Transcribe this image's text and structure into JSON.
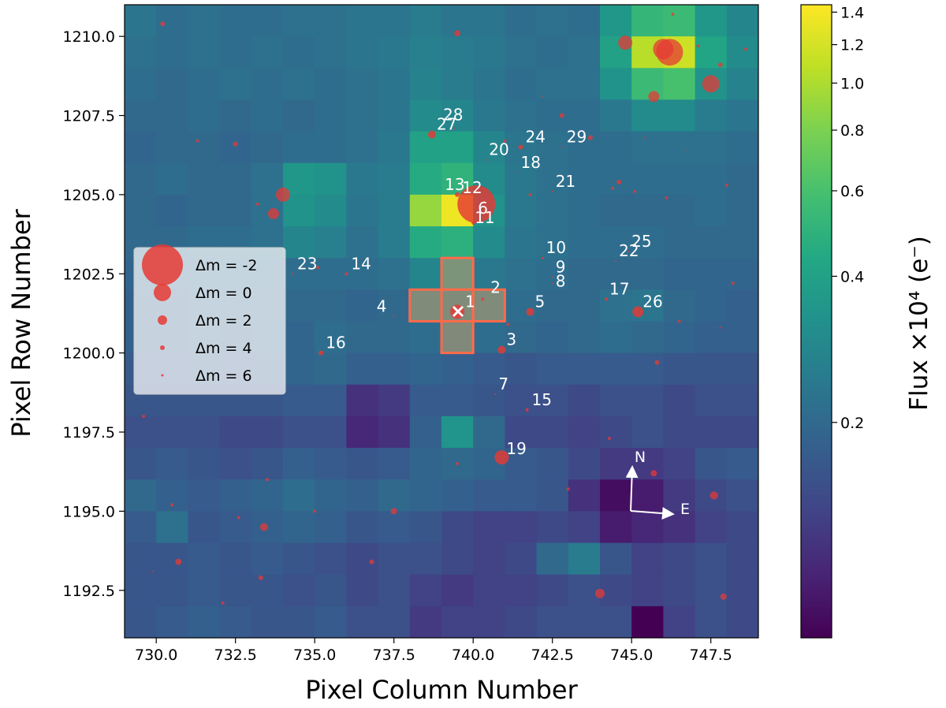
{
  "chart_data": {
    "type": "heatmap",
    "xlabel": "Pixel Column Number",
    "ylabel": "Pixel Row Number",
    "xlim": [
      729.0,
      749.0
    ],
    "ylim": [
      1191.0,
      1211.0
    ],
    "xticks": [
      730.0,
      732.5,
      735.0,
      737.5,
      740.0,
      742.5,
      745.0,
      747.5
    ],
    "xtick_labels": [
      "730.0",
      "732.5",
      "735.0",
      "737.5",
      "740.0",
      "742.5",
      "745.0",
      "747.5"
    ],
    "yticks": [
      1192.5,
      1195.0,
      1197.5,
      1200.0,
      1202.5,
      1205.0,
      1207.5,
      1210.0
    ],
    "ytick_labels": [
      "1192.5",
      "1195.0",
      "1197.5",
      "1200.0",
      "1202.5",
      "1205.0",
      "1207.5",
      "1210.0"
    ],
    "colorbar": {
      "label": "Flux ×10⁴ (e⁻)",
      "scale": "log",
      "range": [
        0.072,
        1.45
      ],
      "ticks": [
        1.4,
        1.2,
        1.0,
        0.8,
        0.6,
        0.4,
        0.2
      ],
      "tick_labels": [
        "1.4",
        "1.2",
        "1.0",
        "0.8",
        "0.6",
        "0.4",
        "0.2"
      ]
    },
    "flux_grid_note": "rows from top (row 1210.5) to bottom (row 1191.5), columns 729.5..748.5",
    "flux_grid": [
      [
        0.23,
        0.21,
        0.22,
        0.21,
        0.21,
        0.22,
        0.22,
        0.23,
        0.23,
        0.25,
        0.23,
        0.23,
        0.21,
        0.22,
        0.21,
        0.35,
        0.52,
        0.55,
        0.35,
        0.28
      ],
      [
        0.22,
        0.21,
        0.22,
        0.21,
        0.22,
        0.21,
        0.22,
        0.23,
        0.24,
        0.26,
        0.25,
        0.24,
        0.22,
        0.21,
        0.22,
        0.4,
        1.05,
        1.15,
        0.42,
        0.3
      ],
      [
        0.21,
        0.2,
        0.21,
        0.22,
        0.21,
        0.22,
        0.21,
        0.22,
        0.23,
        0.27,
        0.25,
        0.23,
        0.21,
        0.22,
        0.22,
        0.33,
        0.55,
        0.6,
        0.33,
        0.27
      ],
      [
        0.2,
        0.2,
        0.21,
        0.2,
        0.21,
        0.2,
        0.21,
        0.22,
        0.23,
        0.3,
        0.28,
        0.24,
        0.22,
        0.21,
        0.21,
        0.24,
        0.3,
        0.3,
        0.25,
        0.23
      ],
      [
        0.19,
        0.2,
        0.2,
        0.19,
        0.2,
        0.21,
        0.21,
        0.22,
        0.24,
        0.4,
        0.4,
        0.28,
        0.23,
        0.22,
        0.21,
        0.21,
        0.22,
        0.22,
        0.22,
        0.21
      ],
      [
        0.2,
        0.21,
        0.2,
        0.2,
        0.22,
        0.35,
        0.33,
        0.24,
        0.25,
        0.45,
        0.5,
        0.3,
        0.24,
        0.22,
        0.21,
        0.21,
        0.21,
        0.21,
        0.21,
        0.2
      ],
      [
        0.2,
        0.19,
        0.2,
        0.2,
        0.22,
        0.33,
        0.3,
        0.23,
        0.25,
        0.9,
        1.35,
        0.33,
        0.24,
        0.22,
        0.21,
        0.2,
        0.2,
        0.2,
        0.21,
        0.2
      ],
      [
        0.2,
        0.2,
        0.21,
        0.21,
        0.22,
        0.28,
        0.26,
        0.22,
        0.25,
        0.45,
        0.48,
        0.3,
        0.23,
        0.22,
        0.21,
        0.21,
        0.21,
        0.2,
        0.2,
        0.2
      ],
      [
        0.19,
        0.19,
        0.2,
        0.2,
        0.2,
        0.21,
        0.21,
        0.21,
        0.22,
        0.28,
        0.28,
        0.24,
        0.22,
        0.21,
        0.2,
        0.2,
        0.2,
        0.19,
        0.19,
        0.19
      ],
      [
        0.18,
        0.18,
        0.19,
        0.19,
        0.19,
        0.2,
        0.2,
        0.19,
        0.2,
        0.22,
        0.22,
        0.22,
        0.21,
        0.2,
        0.2,
        0.22,
        0.23,
        0.2,
        0.19,
        0.18
      ],
      [
        0.18,
        0.18,
        0.19,
        0.18,
        0.19,
        0.19,
        0.21,
        0.2,
        0.2,
        0.21,
        0.21,
        0.21,
        0.2,
        0.19,
        0.2,
        0.21,
        0.2,
        0.19,
        0.18,
        0.18
      ],
      [
        0.17,
        0.17,
        0.18,
        0.17,
        0.18,
        0.19,
        0.2,
        0.18,
        0.18,
        0.19,
        0.18,
        0.17,
        0.16,
        0.17,
        0.17,
        0.17,
        0.17,
        0.16,
        0.16,
        0.16
      ],
      [
        0.16,
        0.16,
        0.16,
        0.16,
        0.16,
        0.17,
        0.17,
        0.11,
        0.12,
        0.17,
        0.17,
        0.16,
        0.15,
        0.15,
        0.14,
        0.15,
        0.15,
        0.14,
        0.15,
        0.15
      ],
      [
        0.15,
        0.15,
        0.15,
        0.14,
        0.14,
        0.15,
        0.15,
        0.1,
        0.11,
        0.18,
        0.34,
        0.2,
        0.14,
        0.14,
        0.13,
        0.14,
        0.15,
        0.14,
        0.14,
        0.14
      ],
      [
        0.16,
        0.17,
        0.16,
        0.15,
        0.16,
        0.18,
        0.17,
        0.16,
        0.17,
        0.19,
        0.2,
        0.19,
        0.17,
        0.16,
        0.14,
        0.12,
        0.12,
        0.13,
        0.16,
        0.17
      ],
      [
        0.2,
        0.18,
        0.17,
        0.18,
        0.19,
        0.21,
        0.19,
        0.18,
        0.2,
        0.19,
        0.18,
        0.17,
        0.17,
        0.16,
        0.11,
        0.08,
        0.09,
        0.12,
        0.14,
        0.15
      ],
      [
        0.17,
        0.22,
        0.16,
        0.17,
        0.18,
        0.19,
        0.18,
        0.16,
        0.17,
        0.16,
        0.14,
        0.13,
        0.13,
        0.14,
        0.13,
        0.09,
        0.1,
        0.11,
        0.13,
        0.14
      ],
      [
        0.16,
        0.16,
        0.17,
        0.16,
        0.17,
        0.16,
        0.15,
        0.14,
        0.15,
        0.15,
        0.14,
        0.13,
        0.14,
        0.2,
        0.25,
        0.16,
        0.13,
        0.14,
        0.15,
        0.14
      ],
      [
        0.16,
        0.16,
        0.17,
        0.16,
        0.16,
        0.15,
        0.16,
        0.14,
        0.15,
        0.13,
        0.12,
        0.13,
        0.13,
        0.14,
        0.15,
        0.14,
        0.13,
        0.14,
        0.15,
        0.14
      ],
      [
        0.16,
        0.17,
        0.18,
        0.17,
        0.16,
        0.16,
        0.17,
        0.15,
        0.15,
        0.12,
        0.13,
        0.13,
        0.14,
        0.15,
        0.15,
        0.15,
        0.07,
        0.13,
        0.15,
        0.14
      ]
    ],
    "aperture_pixels": [
      [
        739.5,
        1202.5
      ],
      [
        739.5,
        1201.5
      ],
      [
        739.5,
        1200.5
      ],
      [
        738.5,
        1201.5
      ],
      [
        740.5,
        1201.5
      ]
    ],
    "target_marker": {
      "x": 739.5,
      "y": 1201.3,
      "symbol": "×"
    },
    "sources": [
      {
        "x": 739.5,
        "y": 1201.3,
        "r": 9,
        "label": "1"
      },
      {
        "x": 740.3,
        "y": 1201.7,
        "r": 2,
        "label": "2"
      },
      {
        "x": 740.9,
        "y": 1200.1,
        "r": 5,
        "label": "3"
      },
      {
        "x": 737.5,
        "y": 1201.15,
        "r": 1,
        "label": "4"
      },
      {
        "x": 741.8,
        "y": 1201.3,
        "r": 5,
        "label": "5"
      },
      {
        "x": 740.1,
        "y": 1204.7,
        "r": 24,
        "label": "6"
      },
      {
        "x": 740.7,
        "y": 1198.7,
        "r": 1,
        "label": "7"
      },
      {
        "x": 742.5,
        "y": 1202.2,
        "r": 1,
        "label": "8"
      },
      {
        "x": 742.5,
        "y": 1202.4,
        "r": 1,
        "label": "9"
      },
      {
        "x": 742.2,
        "y": 1203.0,
        "r": 1.5,
        "label": "10"
      },
      {
        "x": 740.0,
        "y": 1204.1,
        "r": 2,
        "label": "11"
      },
      {
        "x": 740.1,
        "y": 1205.1,
        "r": 2,
        "label": "12"
      },
      {
        "x": 739.5,
        "y": 1205.0,
        "r": 3,
        "label": "13"
      },
      {
        "x": 736.0,
        "y": 1202.5,
        "r": 2,
        "label": "14"
      },
      {
        "x": 741.7,
        "y": 1198.2,
        "r": 2,
        "label": "15"
      },
      {
        "x": 735.2,
        "y": 1200.0,
        "r": 3,
        "label": "16"
      },
      {
        "x": 744.2,
        "y": 1201.7,
        "r": 2,
        "label": "17"
      },
      {
        "x": 741.4,
        "y": 1205.7,
        "r": 1,
        "label": "18"
      },
      {
        "x": 740.9,
        "y": 1196.7,
        "r": 9,
        "label": "19"
      },
      {
        "x": 740.4,
        "y": 1206.1,
        "r": 1,
        "label": "20"
      },
      {
        "x": 742.5,
        "y": 1205.1,
        "r": 1,
        "label": "21"
      },
      {
        "x": 744.5,
        "y": 1202.9,
        "r": 1,
        "label": "22"
      },
      {
        "x": 734.3,
        "y": 1202.5,
        "r": 1,
        "label": "23"
      },
      {
        "x": 741.5,
        "y": 1206.5,
        "r": 3,
        "label": "24"
      },
      {
        "x": 744.9,
        "y": 1203.2,
        "r": 1,
        "label": "25"
      },
      {
        "x": 745.2,
        "y": 1201.3,
        "r": 7,
        "label": "26"
      },
      {
        "x": 738.7,
        "y": 1206.9,
        "r": 5,
        "label": "27"
      },
      {
        "x": 739.4,
        "y": 1207.1,
        "r": 1,
        "label": "28"
      },
      {
        "x": 742.8,
        "y": 1206.5,
        "r": 1,
        "label": "29"
      }
    ],
    "extra_sources": [
      {
        "x": 746.2,
        "y": 1209.5,
        "r": 17
      },
      {
        "x": 746.0,
        "y": 1209.6,
        "r": 13
      },
      {
        "x": 747.5,
        "y": 1208.5,
        "r": 11
      },
      {
        "x": 744.8,
        "y": 1209.8,
        "r": 9
      },
      {
        "x": 745.7,
        "y": 1208.1,
        "r": 7
      },
      {
        "x": 734.0,
        "y": 1205.0,
        "r": 9
      },
      {
        "x": 733.7,
        "y": 1204.4,
        "r": 7
      },
      {
        "x": 744.0,
        "y": 1192.4,
        "r": 6
      },
      {
        "x": 747.6,
        "y": 1195.5,
        "r": 5
      },
      {
        "x": 733.4,
        "y": 1194.5,
        "r": 5
      },
      {
        "x": 730.7,
        "y": 1193.4,
        "r": 4
      },
      {
        "x": 737.5,
        "y": 1195.0,
        "r": 4
      },
      {
        "x": 739.5,
        "y": 1210.1,
        "r": 4
      },
      {
        "x": 745.7,
        "y": 1196.2,
        "r": 4
      },
      {
        "x": 747.9,
        "y": 1192.3,
        "r": 4
      },
      {
        "x": 736.8,
        "y": 1193.4,
        "r": 3
      },
      {
        "x": 743.7,
        "y": 1206.8,
        "r": 3
      },
      {
        "x": 742.8,
        "y": 1207.5,
        "r": 3
      },
      {
        "x": 745.8,
        "y": 1199.7,
        "r": 3
      },
      {
        "x": 732.5,
        "y": 1206.6,
        "r": 3
      },
      {
        "x": 733.3,
        "y": 1192.9,
        "r": 3
      },
      {
        "x": 744.6,
        "y": 1205.4,
        "r": 3
      },
      {
        "x": 747.8,
        "y": 1209.1,
        "r": 3
      },
      {
        "x": 730.2,
        "y": 1210.4,
        "r": 3
      },
      {
        "x": 731.3,
        "y": 1206.7,
        "r": 2
      },
      {
        "x": 733.5,
        "y": 1196.0,
        "r": 2
      },
      {
        "x": 735.0,
        "y": 1195.0,
        "r": 2
      },
      {
        "x": 732.6,
        "y": 1194.8,
        "r": 2
      },
      {
        "x": 730.5,
        "y": 1195.2,
        "r": 2
      },
      {
        "x": 739.5,
        "y": 1196.5,
        "r": 2
      },
      {
        "x": 741.8,
        "y": 1205.0,
        "r": 2
      },
      {
        "x": 745.1,
        "y": 1205.1,
        "r": 2
      },
      {
        "x": 747.1,
        "y": 1209.7,
        "r": 2
      },
      {
        "x": 746.3,
        "y": 1210.7,
        "r": 2
      },
      {
        "x": 743.0,
        "y": 1195.7,
        "r": 2
      },
      {
        "x": 748.6,
        "y": 1209.6,
        "r": 2
      },
      {
        "x": 748.2,
        "y": 1202.2,
        "r": 2
      },
      {
        "x": 746.5,
        "y": 1201.0,
        "r": 2
      },
      {
        "x": 746.1,
        "y": 1204.9,
        "r": 2
      },
      {
        "x": 735.1,
        "y": 1202.7,
        "r": 2
      },
      {
        "x": 732.1,
        "y": 1192.1,
        "r": 2
      },
      {
        "x": 744.3,
        "y": 1197.3,
        "r": 2
      },
      {
        "x": 729.6,
        "y": 1198.0,
        "r": 2
      },
      {
        "x": 741.1,
        "y": 1200.9,
        "r": 2
      },
      {
        "x": 741.0,
        "y": 1206.7,
        "r": 2
      },
      {
        "x": 733.2,
        "y": 1204.7,
        "r": 2
      },
      {
        "x": 748.0,
        "y": 1205.3,
        "r": 2
      },
      {
        "x": 744.4,
        "y": 1205.2,
        "r": 2
      },
      {
        "x": 745.4,
        "y": 1206.8,
        "r": 1
      },
      {
        "x": 731.7,
        "y": 1200.2,
        "r": 1
      },
      {
        "x": 729.9,
        "y": 1193.1,
        "r": 1
      },
      {
        "x": 742.2,
        "y": 1208.1,
        "r": 1
      },
      {
        "x": 746.7,
        "y": 1206.4,
        "r": 1
      },
      {
        "x": 747.8,
        "y": 1200.8,
        "r": 1
      }
    ],
    "legend": {
      "placement": "center-left",
      "entries": [
        {
          "label": "Δm =  -2",
          "r": 26
        },
        {
          "label": "Δm =  0",
          "r": 11
        },
        {
          "label": "Δm =  2",
          "r": 6
        },
        {
          "label": "Δm =  4",
          "r": 3
        },
        {
          "label": "Δm =  6",
          "r": 1.5
        }
      ]
    },
    "compass": {
      "north": "N",
      "east": "E"
    }
  },
  "colors": {
    "source_fill": "#e53935",
    "source_dark": "#b23a2e",
    "aperture_edge": "#ff6a4a",
    "aperture_fill": "#c5a06a",
    "viridis": [
      "#440154",
      "#482475",
      "#414487",
      "#355f8d",
      "#2a788e",
      "#21918c",
      "#22a884",
      "#44bf70",
      "#7ad151",
      "#bddf26",
      "#fde725"
    ]
  }
}
